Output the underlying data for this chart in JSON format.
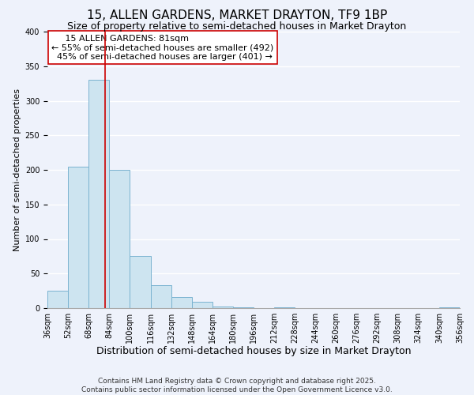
{
  "title": "15, ALLEN GARDENS, MARKET DRAYTON, TF9 1BP",
  "subtitle": "Size of property relative to semi-detached houses in Market Drayton",
  "xlabel": "Distribution of semi-detached houses by size in Market Drayton",
  "ylabel": "Number of semi-detached properties",
  "bin_edges": [
    36,
    52,
    68,
    84,
    100,
    116,
    132,
    148,
    164,
    180,
    196,
    212,
    228,
    244,
    260,
    276,
    292,
    308,
    324,
    340,
    356
  ],
  "bin_counts": [
    25,
    205,
    330,
    200,
    75,
    33,
    16,
    9,
    2,
    1,
    0,
    1,
    0,
    0,
    0,
    0,
    0,
    0,
    0,
    1
  ],
  "property_size": 81,
  "bar_color": "#cde4f0",
  "bar_edge_color": "#7ab3d0",
  "vline_color": "#cc0000",
  "annotation_title": "15 ALLEN GARDENS: 81sqm",
  "annotation_line1": "← 55% of semi-detached houses are smaller (492)",
  "annotation_line2": "45% of semi-detached houses are larger (401) →",
  "annotation_box_color": "#ffffff",
  "annotation_box_edge": "#cc0000",
  "ylim": [
    0,
    400
  ],
  "yticks": [
    0,
    50,
    100,
    150,
    200,
    250,
    300,
    350,
    400
  ],
  "footnote1": "Contains HM Land Registry data © Crown copyright and database right 2025.",
  "footnote2": "Contains public sector information licensed under the Open Government Licence v3.0.",
  "background_color": "#eef2fb",
  "grid_color": "#ffffff",
  "title_fontsize": 11,
  "subtitle_fontsize": 9,
  "xlabel_fontsize": 9,
  "ylabel_fontsize": 8,
  "tick_label_fontsize": 7,
  "annotation_fontsize": 8,
  "footnote_fontsize": 6.5
}
